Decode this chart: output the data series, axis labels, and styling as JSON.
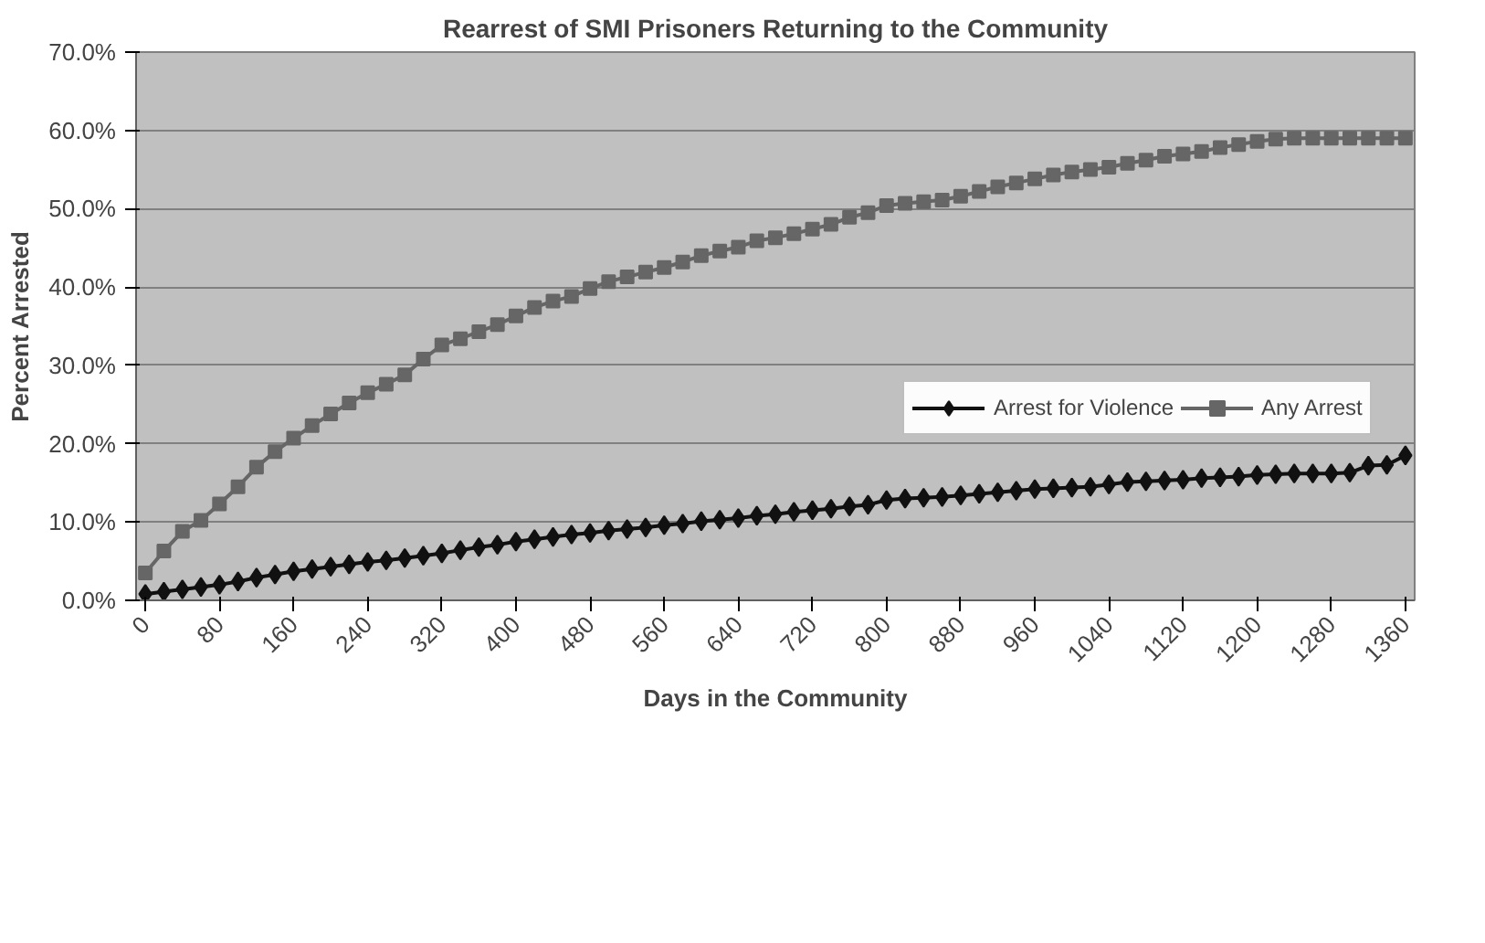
{
  "chart_data": {
    "type": "line",
    "title": "Rearrest of SMI Prisoners Returning to the Community",
    "xlabel": "Days in the Community",
    "ylabel": "Percent Arrested",
    "x": [
      0,
      20,
      40,
      60,
      80,
      100,
      120,
      140,
      160,
      180,
      200,
      220,
      240,
      260,
      280,
      300,
      320,
      340,
      360,
      380,
      400,
      420,
      440,
      460,
      480,
      500,
      520,
      540,
      560,
      580,
      600,
      620,
      640,
      660,
      680,
      700,
      720,
      740,
      760,
      780,
      800,
      820,
      840,
      860,
      880,
      900,
      920,
      940,
      960,
      980,
      1000,
      1020,
      1040,
      1060,
      1080,
      1100,
      1120,
      1140,
      1160,
      1180,
      1200,
      1220,
      1240,
      1260,
      1280,
      1300,
      1320,
      1340,
      1360
    ],
    "series": [
      {
        "name": "Arrest for Violence",
        "color": "#111111",
        "marker": "diamond",
        "values": [
          0.8,
          1.1,
          1.4,
          1.7,
          2.0,
          2.4,
          2.9,
          3.3,
          3.7,
          4.0,
          4.3,
          4.6,
          4.9,
          5.1,
          5.4,
          5.7,
          6.0,
          6.4,
          6.8,
          7.1,
          7.5,
          7.8,
          8.1,
          8.4,
          8.6,
          8.9,
          9.1,
          9.3,
          9.6,
          9.8,
          10.1,
          10.3,
          10.5,
          10.8,
          11.0,
          11.3,
          11.5,
          11.7,
          12.0,
          12.2,
          12.8,
          13.0,
          13.1,
          13.2,
          13.4,
          13.6,
          13.8,
          14.0,
          14.2,
          14.3,
          14.4,
          14.5,
          14.8,
          15.1,
          15.2,
          15.3,
          15.4,
          15.6,
          15.7,
          15.8,
          16.0,
          16.1,
          16.2,
          16.2,
          16.2,
          16.3,
          17.2,
          17.3,
          18.5
        ]
      },
      {
        "name": "Any Arrest",
        "color": "#666666",
        "marker": "square",
        "values": [
          3.5,
          6.3,
          8.8,
          10.2,
          12.3,
          14.5,
          17.0,
          19.0,
          20.7,
          22.3,
          23.8,
          25.2,
          26.5,
          27.6,
          28.8,
          30.8,
          32.6,
          33.4,
          34.3,
          35.2,
          36.3,
          37.4,
          38.2,
          38.8,
          39.8,
          40.7,
          41.3,
          41.9,
          42.5,
          43.2,
          44.0,
          44.6,
          45.1,
          45.9,
          46.3,
          46.8,
          47.4,
          48.0,
          48.9,
          49.5,
          50.4,
          50.7,
          50.9,
          51.1,
          51.6,
          52.2,
          52.8,
          53.3,
          53.8,
          54.3,
          54.7,
          55.0,
          55.3,
          55.8,
          56.2,
          56.7,
          57.0,
          57.3,
          57.8,
          58.2,
          58.6,
          58.9,
          59.0,
          59.0,
          59.0,
          59.0,
          59.0,
          59.0,
          59.0
        ]
      }
    ],
    "xlim": [
      -10,
      1370
    ],
    "xticks": [
      0,
      80,
      160,
      240,
      320,
      400,
      480,
      560,
      640,
      720,
      800,
      880,
      960,
      1040,
      1120,
      1200,
      1280,
      1360
    ],
    "ylim": [
      0,
      70
    ],
    "yticks": [
      {
        "value": 0,
        "label": "0.0%"
      },
      {
        "value": 10,
        "label": "10.0%"
      },
      {
        "value": 20,
        "label": "20.0%"
      },
      {
        "value": 30,
        "label": "30.0%"
      },
      {
        "value": 40,
        "label": "40.0%"
      },
      {
        "value": 50,
        "label": "50.0%"
      },
      {
        "value": 60,
        "label": "60.0%"
      },
      {
        "value": 70,
        "label": "70.0%"
      }
    ],
    "grid": "y",
    "legend": "bottom",
    "line_style": "solid"
  }
}
